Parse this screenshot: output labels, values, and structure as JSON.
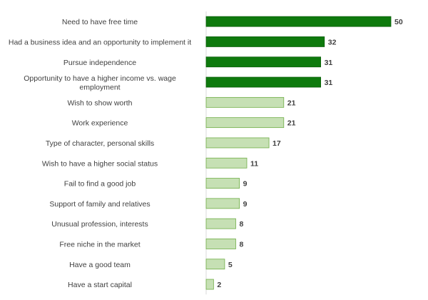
{
  "chart_data": {
    "type": "bar",
    "orientation": "horizontal",
    "categories": [
      [
        "Need to have free time"
      ],
      [
        "Had a business idea and an opportunity to implement it"
      ],
      [
        "Pursue independence"
      ],
      [
        "Opportunity to have a higher income vs. wage",
        "employment"
      ],
      [
        "Wish to show worth"
      ],
      [
        "Work experience"
      ],
      [
        "Type of character, personal skills"
      ],
      [
        "Wish to have a higher social status"
      ],
      [
        "Fail to find a good job"
      ],
      [
        "Support of family and relatives"
      ],
      [
        "Unusual profession, interests"
      ],
      [
        "Free niche in the market"
      ],
      [
        "Have a good team"
      ],
      [
        "Have a start capital"
      ]
    ],
    "values": [
      50,
      32,
      31,
      31,
      21,
      21,
      17,
      11,
      9,
      9,
      8,
      8,
      5,
      2
    ],
    "highlight_count": 4,
    "xlim": [
      0,
      50
    ],
    "grid": false,
    "legend": "none",
    "colors": {
      "highlight_fill": "#0e7a0d",
      "highlight_stroke": "#0b5e0a",
      "normal_fill": "#c6e0b4",
      "normal_stroke": "#70ad47",
      "axis": "#d9d9d9",
      "label": "#404040"
    }
  }
}
